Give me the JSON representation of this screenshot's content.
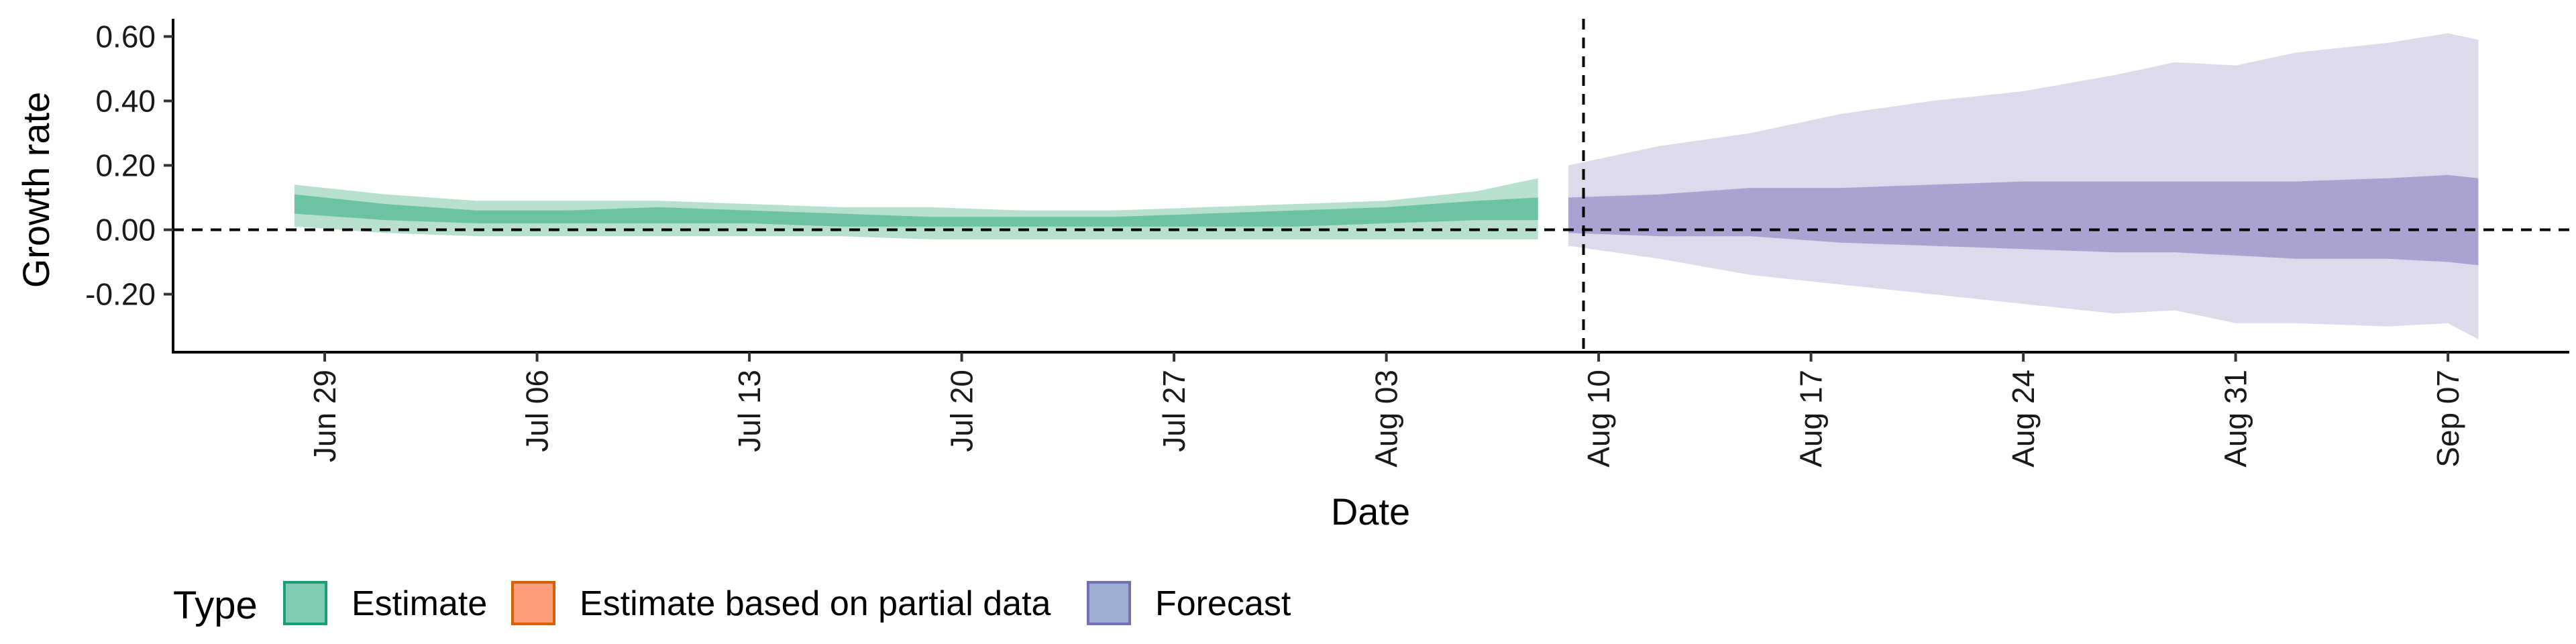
{
  "chart_data": {
    "type": "area",
    "xlabel": "Date",
    "ylabel": "Growth rate",
    "ylim": [
      -0.38,
      0.655
    ],
    "xlim": [
      "2020-06-24",
      "2020-09-11"
    ],
    "y_ticks": [
      "0.60",
      "0.40",
      "0.20",
      "0.00",
      "-0.20"
    ],
    "x_ticks": [
      "Jun 29",
      "Jul 06",
      "Jul 13",
      "Jul 20",
      "Jul 27",
      "Aug 03",
      "Aug 10",
      "Aug 17",
      "Aug 24",
      "Aug 31",
      "Sep 07"
    ],
    "x_tick_dates": [
      "2020-06-29",
      "2020-07-06",
      "2020-07-13",
      "2020-07-20",
      "2020-07-27",
      "2020-08-03",
      "2020-08-10",
      "2020-08-17",
      "2020-08-24",
      "2020-08-31",
      "2020-09-07"
    ],
    "hline_y": 0,
    "vline_date": "2020-08-09",
    "grid": false,
    "legend": {
      "title": "Type",
      "position": "bottom-left",
      "items": [
        {
          "label": "Estimate",
          "fill": "#66c2a5",
          "border": "#1b9e77"
        },
        {
          "label": "Estimate based on partial data",
          "fill": "#fc8d62",
          "border": "#d95f02"
        },
        {
          "label": "Forecast",
          "fill": "#8da0cb",
          "border": "#7570b3"
        }
      ]
    },
    "series": [
      {
        "name": "Estimate",
        "color": "#1b9e77",
        "x": [
          "2020-06-28",
          "2020-07-01",
          "2020-07-04",
          "2020-07-07",
          "2020-07-10",
          "2020-07-13",
          "2020-07-16",
          "2020-07-19",
          "2020-07-22",
          "2020-07-25",
          "2020-07-28",
          "2020-07-31",
          "2020-08-03",
          "2020-08-06",
          "2020-08-08"
        ],
        "outer_upper": [
          0.14,
          0.11,
          0.09,
          0.09,
          0.09,
          0.08,
          0.07,
          0.07,
          0.06,
          0.06,
          0.07,
          0.08,
          0.09,
          0.12,
          0.16
        ],
        "outer_lower": [
          0.01,
          -0.01,
          -0.02,
          -0.02,
          -0.02,
          -0.02,
          -0.02,
          -0.03,
          -0.03,
          -0.03,
          -0.03,
          -0.03,
          -0.03,
          -0.03,
          -0.03
        ],
        "inner_upper": [
          0.11,
          0.08,
          0.06,
          0.06,
          0.07,
          0.06,
          0.05,
          0.04,
          0.04,
          0.04,
          0.05,
          0.06,
          0.07,
          0.09,
          0.1
        ],
        "inner_lower": [
          0.05,
          0.03,
          0.02,
          0.02,
          0.02,
          0.02,
          0.01,
          0.01,
          0.01,
          0.01,
          0.01,
          0.01,
          0.02,
          0.03,
          0.03
        ]
      },
      {
        "name": "Forecast",
        "color": "#7570b3",
        "x": [
          "2020-08-09",
          "2020-08-12",
          "2020-08-15",
          "2020-08-18",
          "2020-08-21",
          "2020-08-24",
          "2020-08-27",
          "2020-08-29",
          "2020-08-31",
          "2020-09-02",
          "2020-09-05",
          "2020-09-07",
          "2020-09-08"
        ],
        "outer_upper": [
          0.2,
          0.26,
          0.3,
          0.36,
          0.4,
          0.43,
          0.48,
          0.52,
          0.51,
          0.55,
          0.58,
          0.61,
          0.59
        ],
        "outer_lower": [
          -0.05,
          -0.09,
          -0.14,
          -0.17,
          -0.2,
          -0.23,
          -0.26,
          -0.25,
          -0.29,
          -0.29,
          -0.3,
          -0.29,
          -0.34
        ],
        "inner_upper": [
          0.1,
          0.11,
          0.13,
          0.13,
          0.14,
          0.15,
          0.15,
          0.15,
          0.15,
          0.15,
          0.16,
          0.17,
          0.16
        ],
        "inner_lower": [
          -0.01,
          -0.02,
          -0.02,
          -0.04,
          -0.05,
          -0.06,
          -0.07,
          -0.07,
          -0.08,
          -0.09,
          -0.09,
          -0.1,
          -0.11
        ]
      }
    ]
  }
}
